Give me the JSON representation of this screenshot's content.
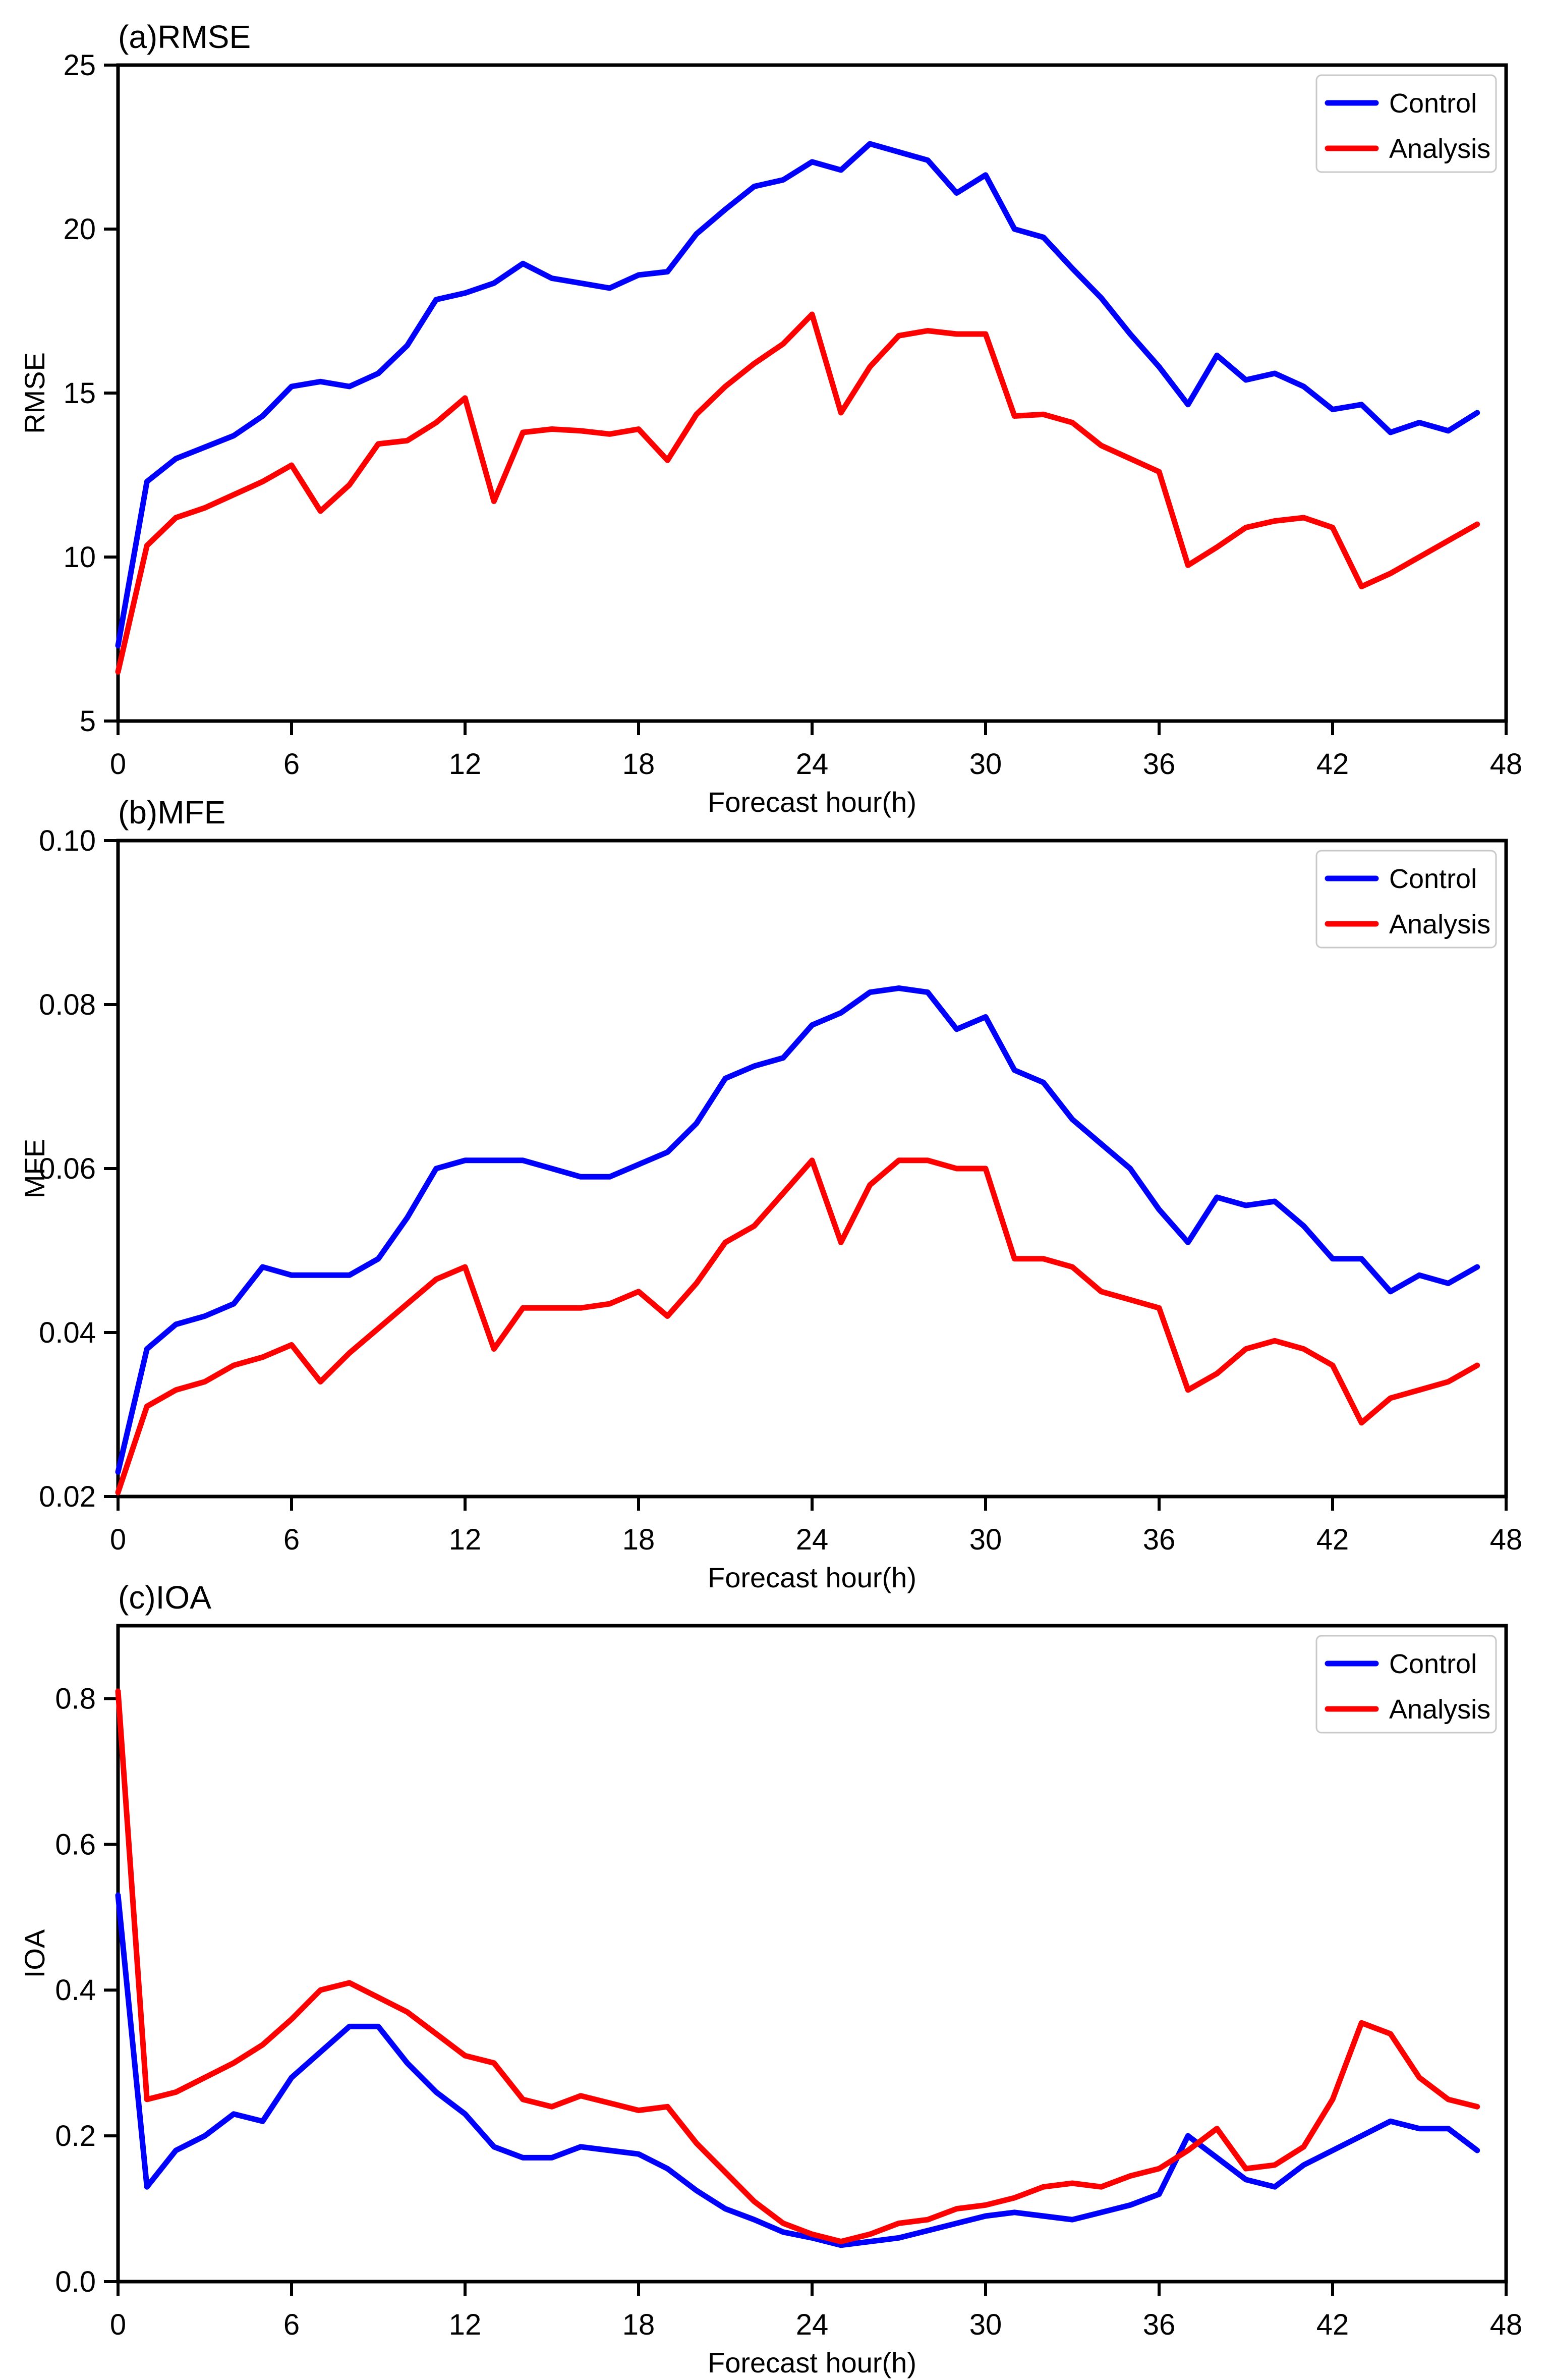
{
  "figure": {
    "background": "#ffffff",
    "axis_color": "#000000",
    "legend_border_color": "#c9c9c9",
    "control_color": "#0000ff",
    "analysis_color": "#ff0000",
    "legend_labels": [
      "Control",
      "Analysis"
    ]
  },
  "chart_data": [
    {
      "type": "line",
      "title": "(a)RMSE",
      "ylabel": "RMSE",
      "xlabel": "Forecast hour(h)",
      "xlim": [
        0,
        48
      ],
      "xticks": [
        0,
        6,
        12,
        18,
        24,
        30,
        36,
        42,
        48
      ],
      "ylim": [
        5,
        25
      ],
      "yticks": [
        5,
        10,
        15,
        20,
        25
      ],
      "ytick_labels": [
        "5",
        "10",
        "15",
        "20",
        "25"
      ],
      "grid": false,
      "legend_position": "upper right",
      "x": [
        0,
        1,
        2,
        3,
        4,
        5,
        6,
        7,
        8,
        9,
        10,
        11,
        12,
        13,
        14,
        15,
        16,
        17,
        18,
        19,
        20,
        21,
        22,
        23,
        24,
        25,
        26,
        27,
        28,
        29,
        30,
        31,
        32,
        33,
        34,
        35,
        36,
        37,
        38,
        39,
        40,
        41,
        42,
        43,
        44,
        45,
        46,
        47
      ],
      "series": [
        {
          "name": "Control",
          "color": "#0000ff",
          "values": [
            7.3,
            12.3,
            13.0,
            13.35,
            13.7,
            14.3,
            15.2,
            15.35,
            15.2,
            15.6,
            16.45,
            17.85,
            18.05,
            18.35,
            18.95,
            18.5,
            18.35,
            18.2,
            18.6,
            18.7,
            19.85,
            20.6,
            21.3,
            21.5,
            22.05,
            21.8,
            22.6,
            22.35,
            22.1,
            21.1,
            21.65,
            20.0,
            19.75,
            18.8,
            17.9,
            16.8,
            15.8,
            14.65,
            16.15,
            15.4,
            15.6,
            15.2,
            14.5,
            14.65,
            13.8,
            14.1,
            13.85,
            14.4
          ]
        },
        {
          "name": "Analysis",
          "color": "#ff0000",
          "values": [
            6.5,
            10.35,
            11.2,
            11.5,
            11.9,
            12.3,
            12.8,
            11.4,
            12.2,
            13.45,
            13.55,
            14.1,
            14.85,
            11.7,
            13.8,
            13.9,
            13.85,
            13.75,
            13.9,
            12.95,
            14.35,
            15.2,
            15.9,
            16.5,
            17.4,
            14.4,
            15.8,
            16.75,
            16.9,
            16.8,
            16.8,
            14.3,
            14.35,
            14.1,
            13.4,
            13.0,
            12.6,
            9.75,
            10.3,
            10.9,
            11.1,
            11.2,
            10.9,
            9.1,
            9.5,
            10.0,
            10.5,
            11.0
          ]
        }
      ]
    },
    {
      "type": "line",
      "title": "(b)MFE",
      "ylabel": "MFE",
      "xlabel": "Forecast hour(h)",
      "xlim": [
        0,
        48
      ],
      "xticks": [
        0,
        6,
        12,
        18,
        24,
        30,
        36,
        42,
        48
      ],
      "ylim": [
        0.02,
        0.1
      ],
      "yticks": [
        0.02,
        0.04,
        0.06,
        0.08,
        0.1
      ],
      "ytick_labels": [
        "0.02",
        "0.04",
        "0.06",
        "0.08",
        "0.10"
      ],
      "grid": false,
      "legend_position": "upper right",
      "x": [
        0,
        1,
        2,
        3,
        4,
        5,
        6,
        7,
        8,
        9,
        10,
        11,
        12,
        13,
        14,
        15,
        16,
        17,
        18,
        19,
        20,
        21,
        22,
        23,
        24,
        25,
        26,
        27,
        28,
        29,
        30,
        31,
        32,
        33,
        34,
        35,
        36,
        37,
        38,
        39,
        40,
        41,
        42,
        43,
        44,
        45,
        46,
        47
      ],
      "series": [
        {
          "name": "Control",
          "color": "#0000ff",
          "values": [
            0.023,
            0.038,
            0.041,
            0.042,
            0.0435,
            0.048,
            0.047,
            0.047,
            0.047,
            0.049,
            0.054,
            0.06,
            0.061,
            0.061,
            0.061,
            0.06,
            0.059,
            0.059,
            0.0605,
            0.062,
            0.0655,
            0.071,
            0.0725,
            0.0735,
            0.0775,
            0.079,
            0.0815,
            0.082,
            0.0815,
            0.077,
            0.0785,
            0.072,
            0.0705,
            0.066,
            0.063,
            0.06,
            0.055,
            0.051,
            0.0565,
            0.0555,
            0.056,
            0.053,
            0.049,
            0.049,
            0.045,
            0.047,
            0.046,
            0.048
          ]
        },
        {
          "name": "Analysis",
          "color": "#ff0000",
          "values": [
            0.0205,
            0.031,
            0.033,
            0.034,
            0.036,
            0.037,
            0.0385,
            0.034,
            0.0375,
            0.0405,
            0.0435,
            0.0465,
            0.048,
            0.038,
            0.043,
            0.043,
            0.043,
            0.0435,
            0.045,
            0.042,
            0.046,
            0.051,
            0.053,
            0.057,
            0.061,
            0.051,
            0.058,
            0.061,
            0.061,
            0.06,
            0.06,
            0.049,
            0.049,
            0.048,
            0.045,
            0.044,
            0.043,
            0.033,
            0.035,
            0.038,
            0.039,
            0.038,
            0.036,
            0.029,
            0.032,
            0.033,
            0.034,
            0.036
          ]
        }
      ]
    },
    {
      "type": "line",
      "title": "(c)IOA",
      "ylabel": "IOA",
      "xlabel": "Forecast hour(h)",
      "xlim": [
        0,
        48
      ],
      "xticks": [
        0,
        6,
        12,
        18,
        24,
        30,
        36,
        42,
        48
      ],
      "ylim": [
        0.0,
        0.9
      ],
      "yticks": [
        0.0,
        0.2,
        0.4,
        0.6,
        0.8
      ],
      "ytick_labels": [
        "0.0",
        "0.2",
        "0.4",
        "0.6",
        "0.8"
      ],
      "grid": false,
      "legend_position": "upper right",
      "x": [
        0,
        1,
        2,
        3,
        4,
        5,
        6,
        7,
        8,
        9,
        10,
        11,
        12,
        13,
        14,
        15,
        16,
        17,
        18,
        19,
        20,
        21,
        22,
        23,
        24,
        25,
        26,
        27,
        28,
        29,
        30,
        31,
        32,
        33,
        34,
        35,
        36,
        37,
        38,
        39,
        40,
        41,
        42,
        43,
        44,
        45,
        46,
        47
      ],
      "series": [
        {
          "name": "Control",
          "color": "#0000ff",
          "values": [
            0.53,
            0.13,
            0.18,
            0.2,
            0.23,
            0.22,
            0.28,
            0.315,
            0.35,
            0.35,
            0.3,
            0.26,
            0.23,
            0.185,
            0.17,
            0.17,
            0.185,
            0.18,
            0.175,
            0.155,
            0.125,
            0.1,
            0.085,
            0.068,
            0.06,
            0.05,
            0.055,
            0.06,
            0.07,
            0.08,
            0.09,
            0.095,
            0.09,
            0.085,
            0.095,
            0.105,
            0.12,
            0.2,
            0.17,
            0.14,
            0.13,
            0.16,
            0.18,
            0.2,
            0.22,
            0.21,
            0.21,
            0.18
          ]
        },
        {
          "name": "Analysis",
          "color": "#ff0000",
          "values": [
            0.81,
            0.25,
            0.26,
            0.28,
            0.3,
            0.325,
            0.36,
            0.4,
            0.41,
            0.39,
            0.37,
            0.34,
            0.31,
            0.3,
            0.25,
            0.24,
            0.255,
            0.245,
            0.235,
            0.24,
            0.19,
            0.15,
            0.11,
            0.08,
            0.065,
            0.055,
            0.065,
            0.08,
            0.085,
            0.1,
            0.105,
            0.115,
            0.13,
            0.135,
            0.13,
            0.145,
            0.155,
            0.18,
            0.21,
            0.155,
            0.16,
            0.185,
            0.25,
            0.355,
            0.34,
            0.28,
            0.25,
            0.24
          ]
        }
      ]
    }
  ]
}
